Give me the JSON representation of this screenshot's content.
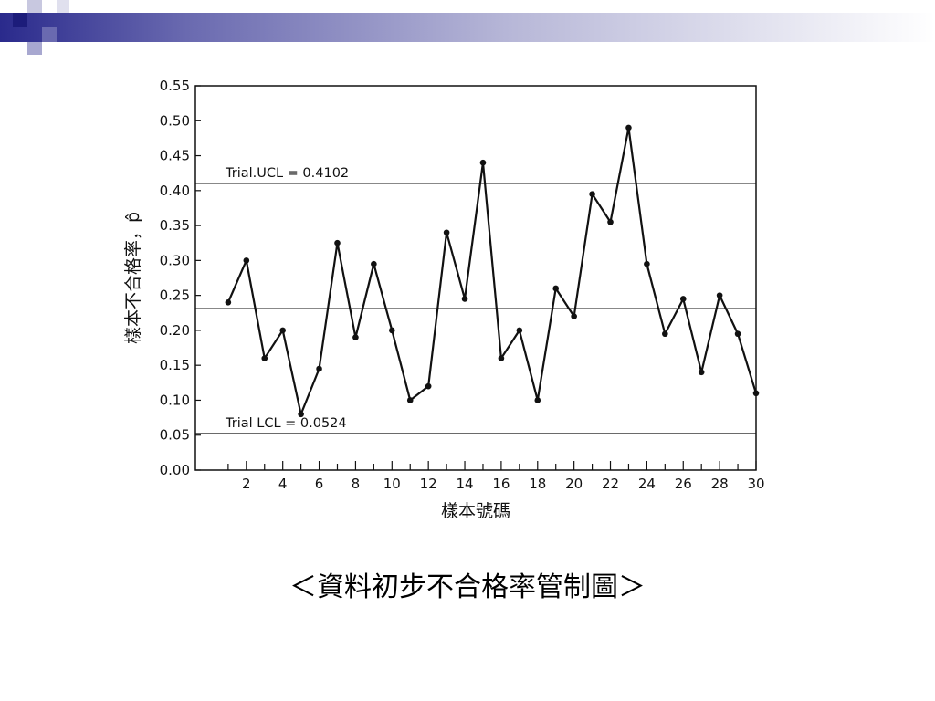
{
  "slide": {
    "caption": "＜資料初步不合格率管制圖＞"
  },
  "chart_data": {
    "type": "line",
    "title": "",
    "xlabel": "樣本號碼",
    "ylabel": "樣本不合格率，p̂",
    "x": [
      1,
      2,
      3,
      4,
      5,
      6,
      7,
      8,
      9,
      10,
      11,
      12,
      13,
      14,
      15,
      16,
      17,
      18,
      19,
      20,
      21,
      22,
      23,
      24,
      25,
      26,
      27,
      28,
      29,
      30
    ],
    "series": [
      {
        "values": [
          0.24,
          0.3,
          0.16,
          0.2,
          0.08,
          0.145,
          0.325,
          0.19,
          0.295,
          0.2,
          0.1,
          0.12,
          0.34,
          0.245,
          0.44,
          0.16,
          0.2,
          0.1,
          0.26,
          0.22,
          0.395,
          0.355,
          0.49,
          0.295,
          0.195,
          0.245,
          0.14,
          0.25,
          0.195,
          0.11
        ]
      }
    ],
    "xlim": [
      -0.8,
      30
    ],
    "ylim": [
      0,
      0.55
    ],
    "xticks": [
      2,
      4,
      6,
      8,
      10,
      12,
      14,
      16,
      18,
      20,
      22,
      24,
      26,
      28,
      30
    ],
    "yticks": [
      "0.00",
      "0.05",
      "0.10",
      "0.15",
      "0.20",
      "0.25",
      "0.30",
      "0.35",
      "0.40",
      "0.45",
      "0.50",
      "0.55"
    ],
    "control_lines": [
      {
        "value": 0.4102,
        "label": "Trial.UCL = 0.4102"
      },
      {
        "value": 0.2313,
        "label": ""
      },
      {
        "value": 0.0524,
        "label": "Trial LCL = 0.0524"
      }
    ],
    "grid": false,
    "colors": {
      "line": "#111111",
      "axis": "#111111"
    }
  }
}
